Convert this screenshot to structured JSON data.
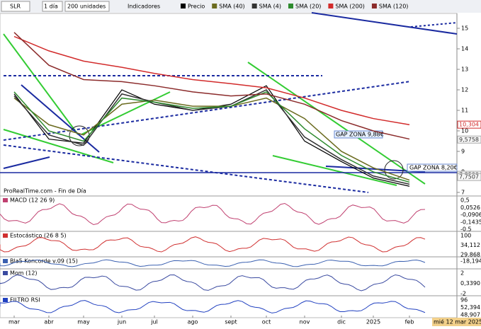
{
  "toolbar": {
    "symbol": "SLR",
    "period": "1 día",
    "units": "200 unidades",
    "indicators": "Indicadores"
  },
  "chart_data": {
    "type": "line",
    "categories": [
      "mar",
      "abr",
      "may",
      "jun",
      "jul",
      "ago",
      "sept",
      "oct",
      "nov",
      "dic",
      "2025",
      "feb"
    ],
    "series": [
      {
        "name": "Precio",
        "color": "#000000",
        "values": [
          11.8,
          9.6,
          9.4,
          12.0,
          11.3,
          11.0,
          11.3,
          12.2,
          9.5,
          8.5,
          7.7,
          7.3
        ]
      },
      {
        "name": "SMA (40)",
        "color": "#6b6b1f",
        "values": [
          11.6,
          10.3,
          9.8,
          11.3,
          11.5,
          11.2,
          11.2,
          11.6,
          10.6,
          9.0,
          8.2,
          7.6
        ]
      },
      {
        "name": "SMA (4)",
        "color": "#333333",
        "values": [
          11.7,
          9.8,
          9.3,
          11.8,
          11.4,
          11.0,
          11.2,
          12.0,
          9.7,
          8.6,
          7.8,
          7.4
        ]
      },
      {
        "name": "SMA (20)",
        "color": "#2e8b2e",
        "values": [
          11.9,
          10.0,
          9.5,
          11.6,
          11.4,
          11.1,
          11.2,
          11.9,
          10.1,
          8.8,
          8.0,
          7.5
        ]
      },
      {
        "name": "SMA (200)",
        "color": "#d22b2b",
        "values": [
          14.6,
          13.9,
          13.4,
          13.1,
          12.8,
          12.5,
          12.3,
          12.1,
          11.6,
          11.0,
          10.6,
          10.3
        ]
      },
      {
        "name": "SMA (120)",
        "color": "#8b2b2b",
        "values": [
          14.8,
          13.2,
          12.5,
          12.4,
          12.2,
          11.9,
          11.7,
          11.8,
          11.3,
          10.5,
          10.0,
          9.6
        ]
      }
    ],
    "ylim": [
      6.86,
      15.69
    ],
    "yticks": [
      7,
      8,
      9,
      10,
      11,
      12,
      13,
      14,
      15
    ],
    "price_labels": [
      {
        "value": 10.304,
        "label": "10,304"
      },
      {
        "value": 9.5758,
        "label": "9,5758"
      },
      {
        "value": 7.859,
        "label": "7,8590"
      },
      {
        "value": 7.7507,
        "label": "7,7507"
      }
    ],
    "annotations": [
      "GAP ZONA 9,88€",
      "GAP ZONA 8,20€"
    ],
    "footer": "ProRealTime.com - Fin de Día",
    "date": "mié 12 mar 2025"
  },
  "panels": [
    {
      "name": "MACD (12 26 9)",
      "labels": [
        "0,5",
        "0,0526",
        "-0,0906",
        "-0,1435",
        "-0,5"
      ]
    },
    {
      "name": "Estocástico (26 8 5)",
      "labels": [
        "100",
        "34,112",
        "29,868"
      ]
    },
    {
      "name": "Bla5 Koncorde v.09 (15)",
      "labels": [
        "-18,194"
      ]
    },
    {
      "name": "Mom (12)",
      "labels": [
        "2",
        "0,3390",
        "-2"
      ]
    },
    {
      "name": "FILTRO RSI",
      "labels": [
        "96",
        "52,394",
        "48,907"
      ]
    }
  ]
}
